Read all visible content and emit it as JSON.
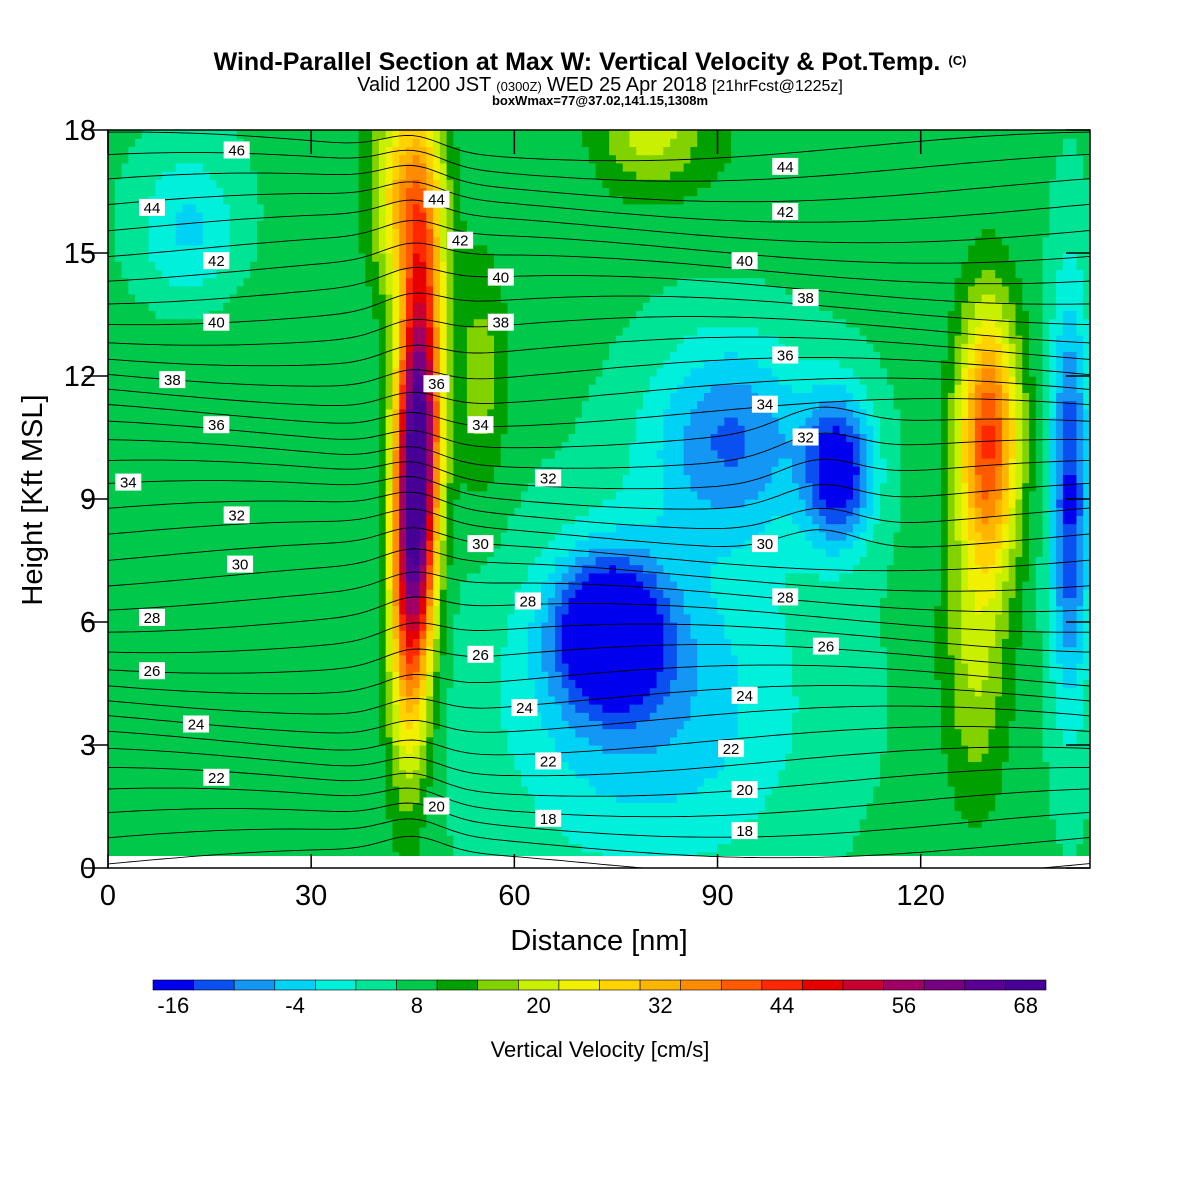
{
  "chart_data": {
    "type": "heatmap",
    "title": "Wind-Parallel Section at Max W: Vertical Velocity & Pot.Temp.",
    "title_mark": "(C)",
    "subtitle": {
      "a": "Valid 1200 JST",
      "b": "(0300Z)",
      "c": "WED 25 Apr 2018",
      "d": "[21hrFcst@1225z]"
    },
    "subtitle2": "boxWmax=77@37.02,141.15,1308m",
    "xlabel": "Distance [nm]",
    "ylabel": "Height [Kft MSL]",
    "xlim": [
      0,
      145
    ],
    "ylim": [
      0,
      18
    ],
    "x_ticks": [
      0,
      30,
      60,
      90,
      120
    ],
    "y_ticks": [
      0,
      3,
      6,
      9,
      12,
      15,
      18
    ],
    "colorbar": {
      "label": "Vertical Velocity [cm/s]",
      "min": -18,
      "step": 4,
      "tick_labels": [
        -16,
        -4,
        8,
        20,
        32,
        44,
        56,
        68
      ],
      "colors": [
        "#0000ee",
        "#0a50f0",
        "#1496f5",
        "#00d2f5",
        "#00f0dc",
        "#00e496",
        "#00c84b",
        "#00a000",
        "#82d200",
        "#c8f000",
        "#f0f000",
        "#ffd200",
        "#ffb400",
        "#ff8c00",
        "#ff5a00",
        "#ff2800",
        "#e60000",
        "#c80032",
        "#a00064",
        "#780082",
        "#5a0096",
        "#460096"
      ]
    },
    "vertical_velocity_features": [
      {
        "x": 45.5,
        "y": 9.5,
        "peak": 77,
        "sx": 3.2,
        "sy": 5.5,
        "tilt": 0.15
      },
      {
        "x": 44,
        "y": 16.5,
        "peak": 30,
        "sx": 5,
        "sy": 2.5,
        "tilt": 0
      },
      {
        "x": 130,
        "y": 10.5,
        "peak": 42,
        "sx": 4.5,
        "sy": 3.2,
        "tilt": 0
      },
      {
        "x": 128,
        "y": 5,
        "peak": 18,
        "sx": 5,
        "sy": 3.5,
        "tilt": 0
      },
      {
        "x": 55,
        "y": 12,
        "peak": 16,
        "sx": 4,
        "sy": 3,
        "tilt": 0
      },
      {
        "x": 74,
        "y": 5.8,
        "peak": -22,
        "sx": 8,
        "sy": 1.8,
        "tilt": 0
      },
      {
        "x": 108,
        "y": 9.7,
        "peak": -18,
        "sx": 5,
        "sy": 1.8,
        "tilt": 0
      },
      {
        "x": 92,
        "y": 10.5,
        "peak": -10,
        "sx": 12,
        "sy": 2.5,
        "tilt": 0
      },
      {
        "x": 142,
        "y": 9,
        "peak": -15,
        "sx": 3,
        "sy": 5,
        "tilt": 0
      },
      {
        "x": 80,
        "y": 4,
        "peak": -6,
        "sx": 22,
        "sy": 4,
        "tilt": 0
      },
      {
        "x": 15,
        "y": 12,
        "peak": 10,
        "sx": 14,
        "sy": 4,
        "tilt": 0
      },
      {
        "x": 20,
        "y": 7,
        "peak": 6,
        "sx": 14,
        "sy": 4,
        "tilt": 0
      },
      {
        "x": 80,
        "y": 18,
        "peak": 20,
        "sx": 8,
        "sy": 1.5,
        "tilt": 0
      },
      {
        "x": 100,
        "y": 17,
        "peak": 10,
        "sx": 12,
        "sy": 2,
        "tilt": 0
      },
      {
        "x": 12,
        "y": 15.5,
        "peak": -4,
        "sx": 8,
        "sy": 2,
        "tilt": 0
      }
    ],
    "theta_labels": [
      {
        "v": "46",
        "x": 19,
        "y": 17.5
      },
      {
        "v": "44",
        "x": 6.5,
        "y": 16.1
      },
      {
        "v": "42",
        "x": 16,
        "y": 14.8
      },
      {
        "v": "40",
        "x": 16,
        "y": 13.3
      },
      {
        "v": "38",
        "x": 9.5,
        "y": 11.9
      },
      {
        "v": "36",
        "x": 16,
        "y": 10.8
      },
      {
        "v": "34",
        "x": 3,
        "y": 9.4
      },
      {
        "v": "32",
        "x": 19,
        "y": 8.6
      },
      {
        "v": "30",
        "x": 19.5,
        "y": 7.4
      },
      {
        "v": "28",
        "x": 6.5,
        "y": 6.1
      },
      {
        "v": "26",
        "x": 6.5,
        "y": 4.8
      },
      {
        "v": "24",
        "x": 13,
        "y": 3.5
      },
      {
        "v": "22",
        "x": 16,
        "y": 2.2
      },
      {
        "v": "44",
        "x": 48.5,
        "y": 16.3
      },
      {
        "v": "42",
        "x": 52,
        "y": 15.3
      },
      {
        "v": "40",
        "x": 58,
        "y": 14.4
      },
      {
        "v": "38",
        "x": 58,
        "y": 13.3
      },
      {
        "v": "36",
        "x": 48.5,
        "y": 11.8
      },
      {
        "v": "34",
        "x": 55,
        "y": 10.8
      },
      {
        "v": "32",
        "x": 65,
        "y": 9.5
      },
      {
        "v": "30",
        "x": 55,
        "y": 7.9
      },
      {
        "v": "28",
        "x": 62,
        "y": 6.5
      },
      {
        "v": "26",
        "x": 55,
        "y": 5.2
      },
      {
        "v": "24",
        "x": 61.5,
        "y": 3.9
      },
      {
        "v": "22",
        "x": 65,
        "y": 2.6
      },
      {
        "v": "20",
        "x": 48.5,
        "y": 1.5
      },
      {
        "v": "18",
        "x": 65,
        "y": 1.2
      },
      {
        "v": "44",
        "x": 100,
        "y": 17.1
      },
      {
        "v": "42",
        "x": 100,
        "y": 16.0
      },
      {
        "v": "40",
        "x": 94,
        "y": 14.8
      },
      {
        "v": "38",
        "x": 103,
        "y": 13.9
      },
      {
        "v": "36",
        "x": 100,
        "y": 12.5
      },
      {
        "v": "34",
        "x": 97,
        "y": 11.3
      },
      {
        "v": "32",
        "x": 103,
        "y": 10.5
      },
      {
        "v": "30",
        "x": 97,
        "y": 7.9
      },
      {
        "v": "28",
        "x": 100,
        "y": 6.6
      },
      {
        "v": "26",
        "x": 106,
        "y": 5.4
      },
      {
        "v": "24",
        "x": 94,
        "y": 4.2
      },
      {
        "v": "22",
        "x": 92,
        "y": 2.9
      },
      {
        "v": "20",
        "x": 94,
        "y": 1.9
      },
      {
        "v": "18",
        "x": 94,
        "y": 0.9
      }
    ]
  }
}
